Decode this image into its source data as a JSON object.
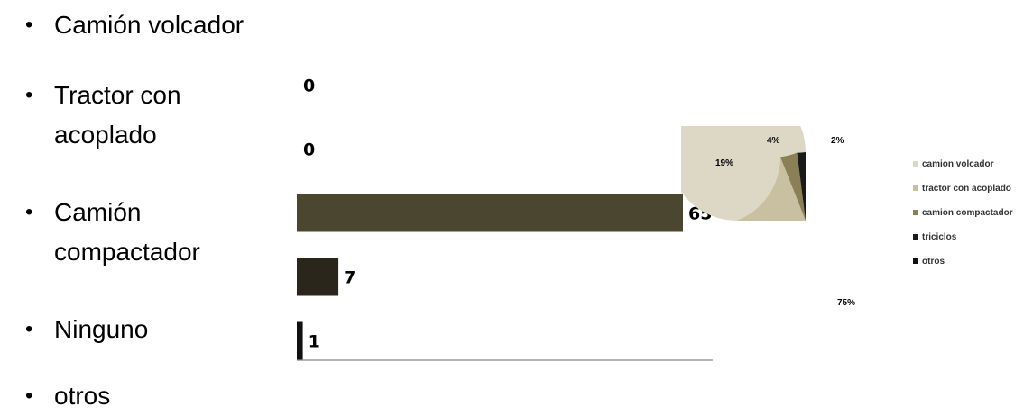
{
  "bullet_list": [
    "Camión volcador",
    "Tractor con acoplado",
    "Camión compactador",
    "Ninguno",
    "otros"
  ],
  "chart_data": [
    {
      "type": "bar",
      "orientation": "horizontal",
      "values": [
        0,
        0,
        65,
        7,
        1
      ],
      "colors": [
        "#4a4630",
        "#4a4630",
        "#4a4630",
        "#2a261b",
        "#111111"
      ],
      "data_labels": [
        "0",
        "0",
        "65",
        "7",
        "1"
      ]
    },
    {
      "type": "pie",
      "slices": [
        {
          "label": "camion volcador",
          "value": 75,
          "text": "75%",
          "color": "#ddd8c6"
        },
        {
          "label": "tractor con acoplado",
          "value": 19,
          "text": "19%",
          "color": "#c8c0a1"
        },
        {
          "label": "camion compactador",
          "value": 4,
          "text": "4%",
          "color": "#8a7f55"
        },
        {
          "label": "triciclos",
          "value": 2,
          "text": "2%",
          "color": "#1a1a1a"
        },
        {
          "label": "otros",
          "value": 0,
          "text": "",
          "color": "#111111"
        }
      ],
      "legend_position": "right"
    }
  ]
}
